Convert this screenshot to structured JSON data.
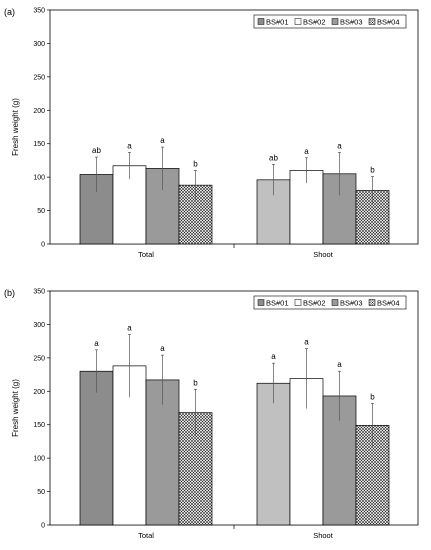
{
  "chart_data": [
    {
      "type": "bar",
      "panel_label": "(a)",
      "ylabel": "Fresh weight (g)",
      "ylim": [
        0,
        350
      ],
      "yticks": [
        0,
        50,
        100,
        150,
        200,
        250,
        300,
        350
      ],
      "categories": [
        "Total",
        "Shoot"
      ],
      "legend_position": "top-right",
      "series": [
        {
          "name": "BS#01",
          "values": [
            104,
            96
          ],
          "errors": [
            26,
            23
          ],
          "sig": [
            "ab",
            "ab"
          ]
        },
        {
          "name": "BS#02",
          "values": [
            117,
            110
          ],
          "errors": [
            20,
            19
          ],
          "sig": [
            "a",
            "a"
          ]
        },
        {
          "name": "BS#03",
          "values": [
            113,
            105
          ],
          "errors": [
            32,
            32
          ],
          "sig": [
            "a",
            "a"
          ]
        },
        {
          "name": "BS#04",
          "values": [
            88,
            80
          ],
          "errors": [
            22,
            21
          ],
          "sig": [
            "b",
            "b"
          ]
        }
      ]
    },
    {
      "type": "bar",
      "panel_label": "(b)",
      "ylabel": "Fresh weight (g)",
      "ylim": [
        0,
        350
      ],
      "yticks": [
        0,
        50,
        100,
        150,
        200,
        250,
        300,
        350
      ],
      "categories": [
        "Total",
        "Shoot"
      ],
      "legend_position": "top-right",
      "series": [
        {
          "name": "BS#01",
          "values": [
            230,
            212
          ],
          "errors": [
            32,
            30
          ],
          "sig": [
            "a",
            "a"
          ]
        },
        {
          "name": "BS#02",
          "values": [
            238,
            219
          ],
          "errors": [
            47,
            45
          ],
          "sig": [
            "a",
            "a"
          ]
        },
        {
          "name": "BS#03",
          "values": [
            217,
            193
          ],
          "errors": [
            37,
            37
          ],
          "sig": [
            "a",
            "a"
          ]
        },
        {
          "name": "BS#04",
          "values": [
            168,
            149
          ],
          "errors": [
            35,
            33
          ],
          "sig": [
            "b",
            "b"
          ]
        }
      ]
    }
  ],
  "series_styles": [
    {
      "fill": "#8c8c8c",
      "fill_shoot": "#c0c0c0",
      "pattern": "solid"
    },
    {
      "fill": "#ffffff",
      "fill_shoot": "#ffffff",
      "pattern": "solid"
    },
    {
      "fill": "#9a9a9a",
      "fill_shoot": "#9a9a9a",
      "pattern": "solid"
    },
    {
      "fill": "#ffffff",
      "fill_shoot": "#ffffff",
      "pattern": "crosshatch"
    }
  ]
}
